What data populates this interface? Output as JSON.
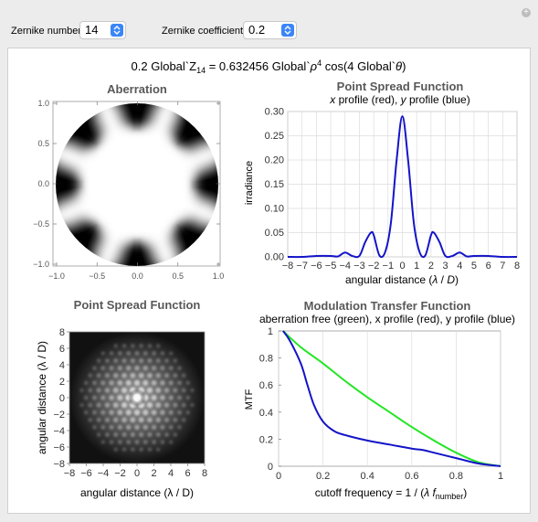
{
  "controls": {
    "zernike_number_label": "Zernike number",
    "zernike_number_value": "14",
    "zernike_coefficient_label": "Zernike coefficient",
    "zernike_coefficient_value": "0.2"
  },
  "formula": {
    "lhs": "0.2 Global`Z",
    "lhs_sub": "14",
    "mid": " = 0.632456 Global`",
    "rho": "ρ",
    "exp": "4",
    "rhs": " cos(4 Global`",
    "theta": "θ",
    "close": ")"
  },
  "aberration": {
    "title": "Aberration",
    "ticks": [
      "−1.0",
      "−0.5",
      "0.0",
      "0.5",
      "1.0"
    ],
    "y_ticks": [
      "1.0",
      "0.5",
      "0.0",
      "−0.5",
      "−1.0"
    ]
  },
  "psf_profile": {
    "title": "Point Spread Function",
    "subtitle_x": "x",
    "subtitle_mid": " profile (red), ",
    "subtitle_y": "y",
    "subtitle_end": " profile (blue)",
    "ylabel": "irradiance",
    "xlabel_pre": "angular distance (",
    "xlabel_lambda": "λ",
    "xlabel_slash": " / ",
    "xlabel_D": "D",
    "xlabel_close": ")",
    "x_ticks": [
      "−8",
      "−7",
      "−6",
      "−5",
      "−4",
      "−3",
      "−2",
      "−1",
      "0",
      "1",
      "2",
      "3",
      "4",
      "5",
      "6",
      "7",
      "8"
    ],
    "y_ticks": [
      "0.30",
      "0.25",
      "0.20",
      "0.15",
      "0.10",
      "0.05",
      "0.00"
    ]
  },
  "psf_image": {
    "title": "Point Spread Function",
    "ticks_x": [
      "−8",
      "−6",
      "−4",
      "−2",
      "0",
      "2",
      "4",
      "6",
      "8"
    ],
    "ticks_y": [
      "8",
      "6",
      "4",
      "2",
      "0",
      "−2",
      "−4",
      "−6",
      "−8"
    ],
    "xlabel": "angular distance (λ / D)",
    "ylabel": "angular distance (λ / D)"
  },
  "mtf": {
    "title": "Modulation Transfer Function",
    "subtitle": "aberration free (green), x profile (red), y profile (blue)",
    "ylabel": "MTF",
    "xlabel_pre": "cutoff frequency = 1 / (",
    "xlabel_lambda": "λ",
    "xlabel_f": " f",
    "xlabel_sub": "number",
    "xlabel_close": ")",
    "x_ticks": [
      "0",
      "0.2",
      "0.4",
      "0.6",
      "0.8",
      "1"
    ],
    "y_ticks": [
      "1",
      "0.8",
      "0.6",
      "0.4",
      "0.2",
      "0"
    ]
  },
  "colors": {
    "blue": "#1414c8",
    "green": "#22e622",
    "title_gray": "#595959"
  },
  "chart_data": [
    {
      "type": "line",
      "title": "Point Spread Function",
      "xlabel": "angular distance (λ / D)",
      "ylabel": "irradiance",
      "xlim": [
        -8,
        8
      ],
      "ylim": [
        0,
        0.3
      ],
      "series": [
        {
          "name": "y profile (blue)",
          "x": [
            -8,
            -7,
            -6,
            -5,
            -4.5,
            -4,
            -3.5,
            -3,
            -2.6,
            -2.2,
            -2,
            -1.6,
            -1.2,
            -0.8,
            -0.4,
            0,
            0.4,
            0.8,
            1.2,
            1.6,
            2,
            2.2,
            2.6,
            3,
            3.5,
            4,
            4.5,
            5,
            6,
            7,
            8
          ],
          "y": [
            0.0,
            0.0,
            0.002,
            0.002,
            0.001,
            0.009,
            0.002,
            0.002,
            0.03,
            0.05,
            0.045,
            0.003,
            0.01,
            0.07,
            0.2,
            0.29,
            0.2,
            0.07,
            0.01,
            0.003,
            0.045,
            0.05,
            0.03,
            0.002,
            0.002,
            0.009,
            0.001,
            0.002,
            0.002,
            0.0,
            0.0
          ]
        }
      ]
    },
    {
      "type": "line",
      "title": "Modulation Transfer Function",
      "xlabel": "cutoff frequency = 1 / (λ f_number)",
      "ylabel": "MTF",
      "xlim": [
        0,
        1
      ],
      "ylim": [
        0,
        1
      ],
      "series": [
        {
          "name": "aberration free (green)",
          "x": [
            0.02,
            0.1,
            0.2,
            0.3,
            0.4,
            0.5,
            0.6,
            0.7,
            0.8,
            0.9,
            1.0
          ],
          "y": [
            1.0,
            0.88,
            0.76,
            0.63,
            0.51,
            0.4,
            0.29,
            0.19,
            0.1,
            0.03,
            0.0
          ]
        },
        {
          "name": "y profile (blue)",
          "x": [
            0.02,
            0.05,
            0.1,
            0.13,
            0.16,
            0.2,
            0.25,
            0.3,
            0.4,
            0.5,
            0.6,
            0.65,
            0.7,
            0.8,
            0.9,
            1.0
          ],
          "y": [
            1.0,
            0.93,
            0.76,
            0.6,
            0.45,
            0.33,
            0.26,
            0.23,
            0.19,
            0.16,
            0.13,
            0.12,
            0.1,
            0.06,
            0.02,
            0.0
          ]
        }
      ]
    }
  ]
}
